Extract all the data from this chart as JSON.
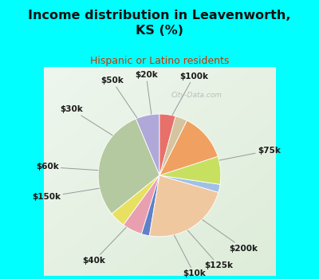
{
  "title": "Income distribution in Leavenworth,\nKS (%)",
  "subtitle": "Hispanic or Latino residents",
  "title_color": "#111111",
  "subtitle_color": "#cc3300",
  "background_color": "#00ffff",
  "plot_bg_top": "#e8f5e9",
  "plot_bg_bottom": "#d0edd0",
  "watermark": "City-Data.com",
  "labels": [
    "$100k",
    "$75k",
    "$200k",
    "$125k",
    "$10k",
    "$40k",
    "$150k",
    "$60k",
    "$30k",
    "$50k",
    "$20k"
  ],
  "values": [
    6,
    28,
    4,
    5,
    2,
    22,
    2,
    7,
    12,
    3,
    4
  ],
  "colors": [
    "#b0a8d8",
    "#b5c9a0",
    "#e8e060",
    "#e8a0b0",
    "#6080c8",
    "#f0c8a0",
    "#a0c0e8",
    "#c8e060",
    "#f0a060",
    "#d4c4a0",
    "#e8706a"
  ],
  "label_fontsize": 7.5,
  "startangle": 90,
  "label_positions": {
    "$100k": [
      1.38,
      90,
      "center"
    ],
    "$75k": [
      1.32,
      0,
      "left"
    ],
    "$200k": [
      1.38,
      0,
      "left"
    ],
    "$125k": [
      1.38,
      0,
      "left"
    ],
    "$10k": [
      1.38,
      0,
      "center"
    ],
    "$40k": [
      1.38,
      0,
      "center"
    ],
    "$150k": [
      1.38,
      0,
      "left"
    ],
    "$60k": [
      1.38,
      0,
      "left"
    ],
    "$30k": [
      1.38,
      0,
      "right"
    ],
    "$50k": [
      1.38,
      0,
      "right"
    ],
    "$20k": [
      1.38,
      0,
      "center"
    ]
  }
}
